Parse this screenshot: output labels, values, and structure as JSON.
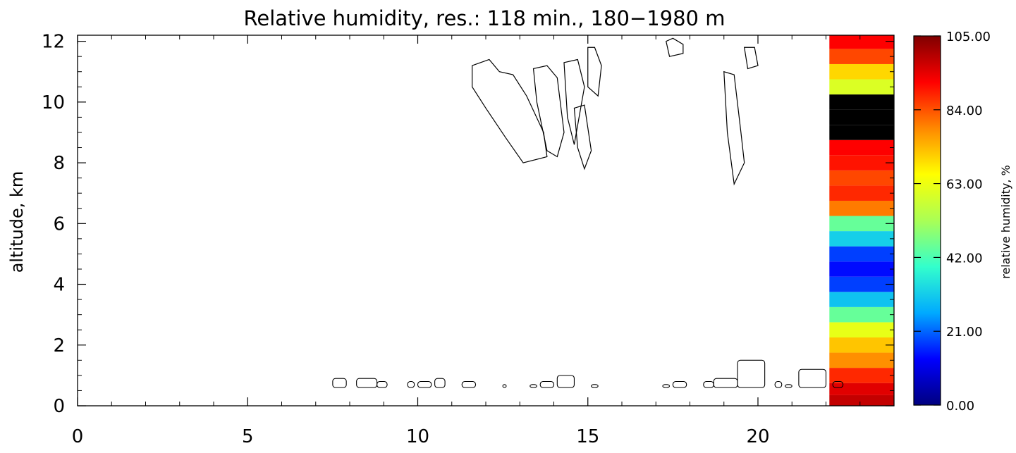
{
  "chart_data": {
    "type": "heatmap",
    "title": "Relative humidity, res.: 118 min., 180−1980 m",
    "xlabel": "",
    "ylabel": "altitude, km",
    "xlim": [
      0,
      24
    ],
    "ylim": [
      0,
      12.2
    ],
    "x_ticks": [
      0,
      5,
      10,
      15,
      20
    ],
    "x_tick_labels": [
      "0",
      "5",
      "10",
      "15",
      "20"
    ],
    "y_ticks": [
      0,
      2,
      4,
      6,
      8,
      10,
      12
    ],
    "y_tick_labels": [
      "0",
      "2",
      "4",
      "6",
      "8",
      "10",
      "12"
    ],
    "colorbar": {
      "label": "relative humidity, %",
      "range": [
        0,
        105
      ],
      "tick_values": [
        0,
        21,
        42,
        63,
        84,
        105
      ],
      "tick_labels": [
        "0.00",
        "21.00",
        "42.00",
        "63.00",
        "84.00",
        "105.00"
      ],
      "colormap": [
        "#00007f",
        "#0000ff",
        "#00aaff",
        "#33ffcc",
        "#aaff55",
        "#ffff00",
        "#ff8800",
        "#ff0000",
        "#7f0000"
      ]
    },
    "data_region": {
      "x_start": 22.1,
      "x_end": 24,
      "note_profile_altitudes_km": [
        0.2,
        0.5,
        1.0,
        1.5,
        2.0,
        2.5,
        3.0,
        3.5,
        4.0,
        4.5,
        5.0,
        5.5,
        6.0,
        6.5,
        7.0,
        7.5,
        8.0,
        8.5,
        9.0,
        9.5,
        10.0,
        10.5,
        11.0,
        11.5,
        12.0
      ],
      "rh_percent": [
        98,
        95,
        88,
        78,
        72,
        62,
        45,
        30,
        18,
        14,
        18,
        32,
        45,
        80,
        88,
        85,
        90,
        92,
        0,
        0,
        0,
        60,
        70,
        85,
        92
      ]
    },
    "cloud_contours": [
      {
        "t": [
          11.6,
          12.1,
          12.4,
          12.8,
          13.2,
          13.7,
          13.8,
          13.1,
          12.6,
          12.0,
          11.6
        ],
        "alt": [
          11.2,
          11.4,
          11.0,
          10.9,
          10.2,
          9.0,
          8.2,
          8.0,
          8.8,
          9.8,
          10.5
        ]
      },
      {
        "t": [
          13.4,
          13.8,
          14.1,
          14.3,
          14.1,
          13.8,
          13.5
        ],
        "alt": [
          11.1,
          11.2,
          10.8,
          9.0,
          8.2,
          8.4,
          10.0
        ]
      },
      {
        "t": [
          14.3,
          14.7,
          14.9,
          14.6,
          14.4
        ],
        "alt": [
          11.3,
          11.4,
          10.5,
          8.6,
          9.5
        ]
      },
      {
        "t": [
          14.6,
          14.9,
          15.1,
          14.9,
          14.7
        ],
        "alt": [
          9.8,
          9.9,
          8.4,
          7.8,
          8.5
        ]
      },
      {
        "t": [
          15.0,
          15.2,
          15.4,
          15.3,
          15.0
        ],
        "alt": [
          11.8,
          11.8,
          11.2,
          10.2,
          10.5
        ]
      },
      {
        "t": [
          17.3,
          17.5,
          17.8,
          17.8,
          17.4
        ],
        "alt": [
          12.0,
          12.1,
          11.9,
          11.6,
          11.5
        ]
      },
      {
        "t": [
          19.0,
          19.3,
          19.5,
          19.6,
          19.3,
          19.1
        ],
        "alt": [
          11.0,
          10.9,
          9.0,
          8.0,
          7.3,
          9.0
        ]
      },
      {
        "t": [
          19.6,
          19.9,
          20.0,
          19.7
        ],
        "alt": [
          11.8,
          11.8,
          11.2,
          11.1
        ]
      }
    ],
    "low_clouds": [
      {
        "t": [
          7.5,
          7.9
        ],
        "alt": [
          0.6,
          0.9
        ]
      },
      {
        "t": [
          8.2,
          8.8
        ],
        "alt": [
          0.6,
          0.9
        ]
      },
      {
        "t": [
          8.8,
          9.1
        ],
        "alt": [
          0.6,
          0.8
        ]
      },
      {
        "t": [
          9.7,
          9.9
        ],
        "alt": [
          0.6,
          0.8
        ]
      },
      {
        "t": [
          10.0,
          10.4
        ],
        "alt": [
          0.6,
          0.8
        ]
      },
      {
        "t": [
          10.5,
          10.8
        ],
        "alt": [
          0.6,
          0.9
        ]
      },
      {
        "t": [
          11.3,
          11.7
        ],
        "alt": [
          0.6,
          0.8
        ]
      },
      {
        "t": [
          12.5,
          12.6
        ],
        "alt": [
          0.6,
          0.7
        ]
      },
      {
        "t": [
          13.3,
          13.5
        ],
        "alt": [
          0.6,
          0.7
        ]
      },
      {
        "t": [
          13.6,
          14.0
        ],
        "alt": [
          0.6,
          0.8
        ]
      },
      {
        "t": [
          14.1,
          14.6
        ],
        "alt": [
          0.6,
          1.0
        ]
      },
      {
        "t": [
          15.1,
          15.3
        ],
        "alt": [
          0.6,
          0.7
        ]
      },
      {
        "t": [
          17.2,
          17.4
        ],
        "alt": [
          0.6,
          0.7
        ]
      },
      {
        "t": [
          17.5,
          17.9
        ],
        "alt": [
          0.6,
          0.8
        ]
      },
      {
        "t": [
          18.4,
          18.7
        ],
        "alt": [
          0.6,
          0.8
        ]
      },
      {
        "t": [
          18.7,
          19.4
        ],
        "alt": [
          0.6,
          0.9
        ]
      },
      {
        "t": [
          19.4,
          20.2
        ],
        "alt": [
          0.6,
          1.5
        ]
      },
      {
        "t": [
          20.5,
          20.7
        ],
        "alt": [
          0.6,
          0.8
        ]
      },
      {
        "t": [
          20.8,
          21.0
        ],
        "alt": [
          0.6,
          0.7
        ]
      },
      {
        "t": [
          21.2,
          22.0
        ],
        "alt": [
          0.6,
          1.2
        ]
      },
      {
        "t": [
          22.2,
          22.5
        ],
        "alt": [
          0.6,
          0.8
        ]
      }
    ]
  }
}
